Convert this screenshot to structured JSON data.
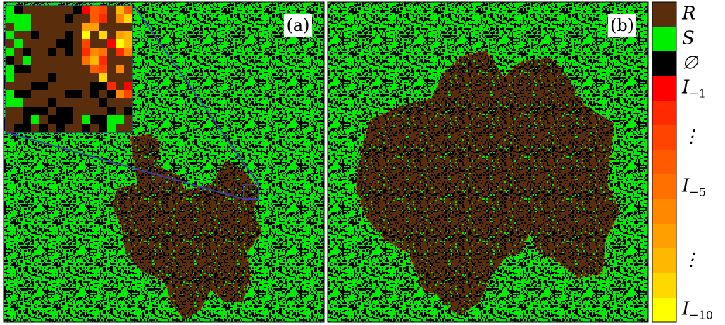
{
  "panels": [
    {
      "label": "(a)"
    },
    {
      "label": "(b)"
    }
  ],
  "legend": {
    "items": [
      {
        "label": {
          "symbol": "R"
        },
        "color": "#5a2d0c"
      },
      {
        "label": {
          "symbol": "S"
        },
        "color": "#00ee00"
      },
      {
        "label": {
          "symbol": "∅"
        },
        "color": "#000000"
      },
      {
        "label": {
          "symbol": "I",
          "subscript": "−1"
        },
        "color": "#ff0000"
      },
      {
        "label": null,
        "color": "#ff2a00"
      },
      {
        "label": {
          "symbol": "⋮"
        },
        "color": "#ff4400"
      },
      {
        "label": null,
        "color": "#ff5a00"
      },
      {
        "label": {
          "symbol": "I",
          "subscript": "−5"
        },
        "color": "#ff7000"
      },
      {
        "label": null,
        "color": "#ff8800"
      },
      {
        "label": null,
        "color": "#ffa000"
      },
      {
        "label": {
          "symbol": "⋮"
        },
        "color": "#ffb800"
      },
      {
        "label": null,
        "color": "#ffd800"
      },
      {
        "label": {
          "symbol": "I",
          "subscript": "−10"
        },
        "color": "#ffff00"
      }
    ]
  }
}
